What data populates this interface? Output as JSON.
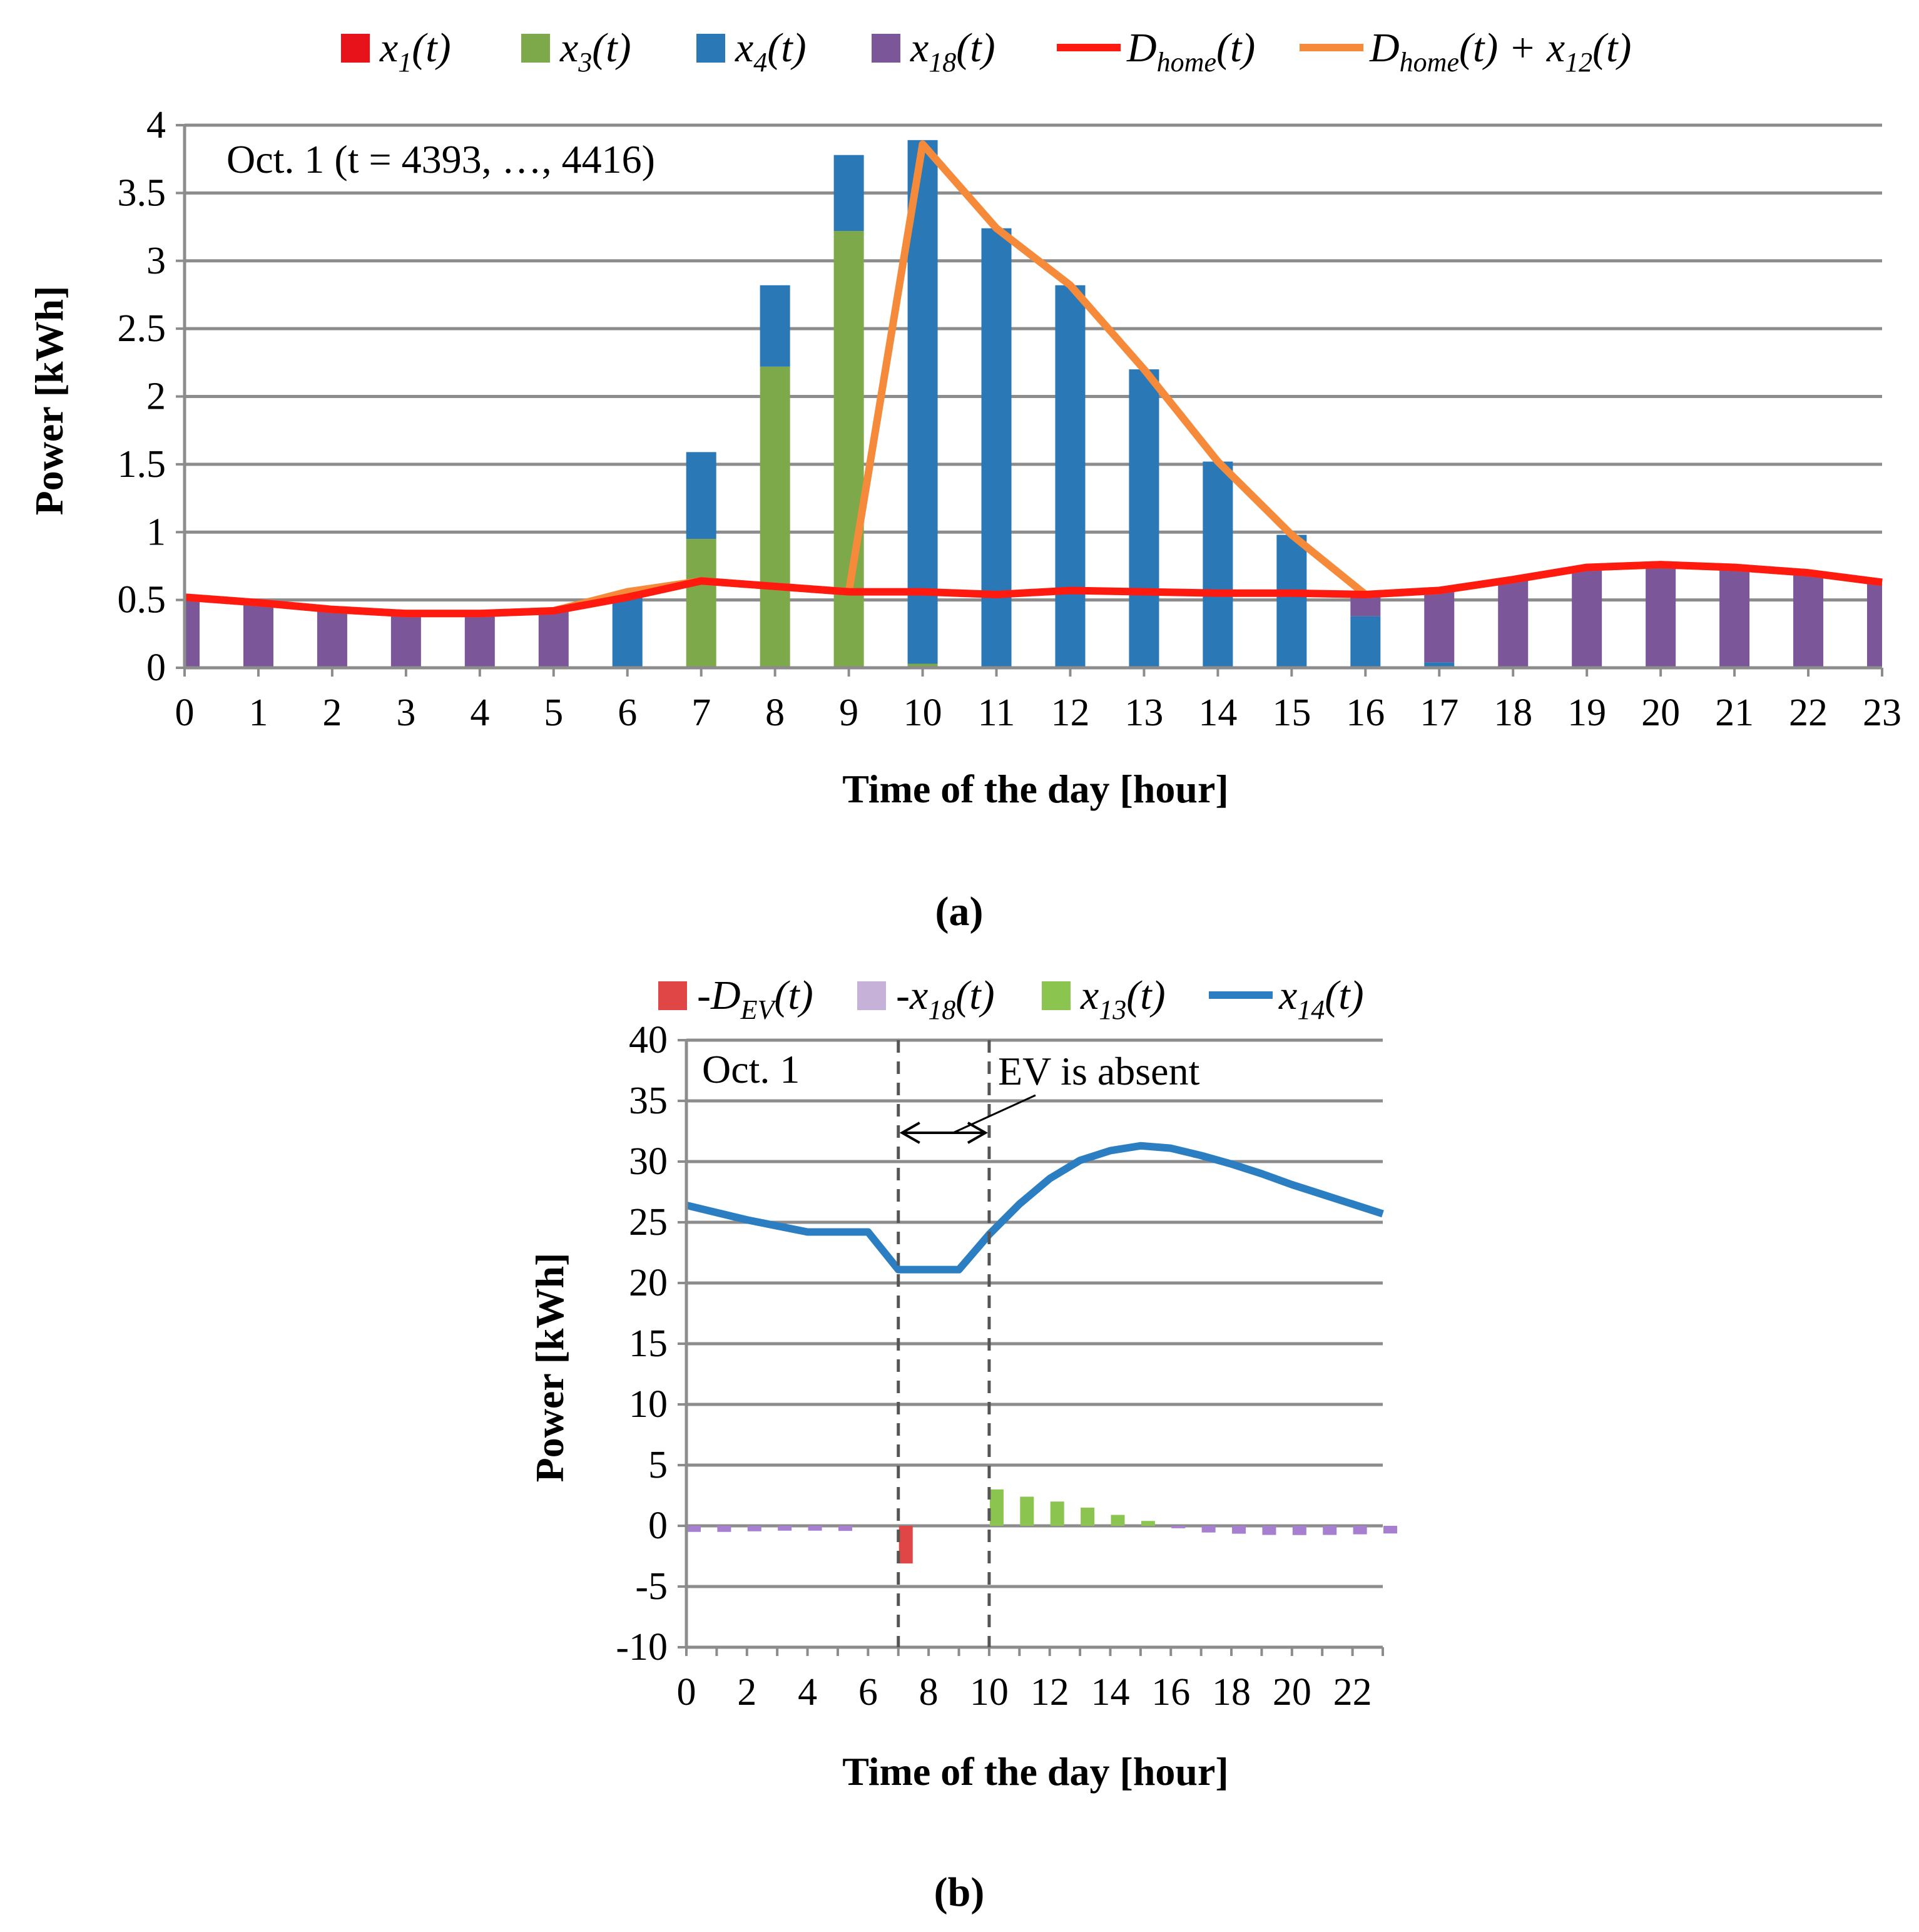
{
  "figure": {
    "panel_a_label": "(a)",
    "panel_b_label": "(b)"
  },
  "colors": {
    "x1": "#e8121b",
    "x3": "#7ea94a",
    "x4": "#2a78b6",
    "x18": "#7b5699",
    "d_home": "#ff1a10",
    "d_home_plus_x12": "#f58a3a",
    "neg_dev": "#e14646",
    "neg_x18": "#c6b1d8",
    "neg_x18_bar": "#a67fd0",
    "x13": "#8bc44f",
    "x14": "#2b7ec1",
    "grid": "#8c8c8c"
  },
  "chart_data": [
    {
      "type": "bar",
      "stacked": true,
      "annotation": "Oct. 1 (t = 4393, …, 4416)",
      "xlabel": "Time of the day [hour]",
      "ylabel": "Power [kWh]",
      "ylim": [
        0,
        4
      ],
      "yticks": [
        0,
        0.5,
        1,
        1.5,
        2,
        2.5,
        3,
        3.5,
        4
      ],
      "categories": [
        "0",
        "1",
        "2",
        "3",
        "4",
        "5",
        "6",
        "7",
        "8",
        "9",
        "10",
        "11",
        "12",
        "13",
        "14",
        "15",
        "16",
        "17",
        "18",
        "19",
        "20",
        "21",
        "22",
        "23"
      ],
      "legend": {
        "position": "top",
        "entries": [
          {
            "key": "x1",
            "base": "x",
            "sub": "1",
            "suffix": "(t)",
            "kind": "box"
          },
          {
            "key": "x3",
            "base": "x",
            "sub": "3",
            "suffix": "(t)",
            "kind": "box"
          },
          {
            "key": "x4",
            "base": "x",
            "sub": "4",
            "suffix": "(t)",
            "kind": "box"
          },
          {
            "key": "x18",
            "base": "x",
            "sub": "18",
            "suffix": "(t)",
            "kind": "box"
          },
          {
            "key": "d_home",
            "base": "D",
            "sub": "home",
            "suffix": "(t)",
            "kind": "line"
          },
          {
            "key": "d_home_plus_x12",
            "base": "D",
            "sub": "home",
            "suffix": "(t) + x",
            "sub2": "12",
            "suffix2": "(t)",
            "kind": "line"
          }
        ]
      },
      "series": [
        {
          "name": "x1(t)",
          "key": "x1",
          "kind": "bar",
          "values": [
            0,
            0,
            0,
            0,
            0,
            0,
            0,
            0,
            0,
            0,
            0,
            0,
            0,
            0,
            0,
            0,
            0,
            0,
            0,
            0,
            0,
            0,
            0,
            0
          ]
        },
        {
          "name": "x3(t)",
          "key": "x3",
          "kind": "bar",
          "values": [
            0,
            0,
            0,
            0,
            0,
            0,
            0,
            0.95,
            2.22,
            3.22,
            0.03,
            0,
            0,
            0,
            0,
            0,
            0,
            0,
            0,
            0,
            0,
            0,
            0,
            0
          ]
        },
        {
          "name": "x4(t)",
          "key": "x4",
          "kind": "bar",
          "values": [
            0,
            0,
            0,
            0,
            0,
            0,
            0.52,
            0.64,
            0.6,
            0.56,
            3.86,
            3.24,
            2.82,
            2.2,
            1.52,
            0.98,
            0.38,
            0.04,
            0,
            0,
            0,
            0,
            0,
            0
          ]
        },
        {
          "name": "x18(t)",
          "key": "x18",
          "kind": "bar",
          "values": [
            0.5,
            0.47,
            0.42,
            0.4,
            0.4,
            0.42,
            0,
            0,
            0,
            0,
            0,
            0,
            0,
            0,
            0,
            0,
            0.16,
            0.54,
            0.65,
            0.74,
            0.76,
            0.74,
            0.7,
            0.63
          ]
        },
        {
          "name": "Dhome(t)",
          "key": "d_home",
          "kind": "line",
          "values": [
            0.52,
            0.48,
            0.43,
            0.4,
            0.4,
            0.42,
            0.52,
            0.64,
            0.6,
            0.56,
            0.56,
            0.54,
            0.57,
            0.56,
            0.55,
            0.55,
            0.54,
            0.57,
            0.65,
            0.74,
            0.76,
            0.74,
            0.7,
            0.63
          ]
        },
        {
          "name": "Dhome(t) + x12(t)",
          "key": "d_home_plus_x12",
          "kind": "line",
          "values": [
            0.52,
            0.48,
            0.43,
            0.4,
            0.4,
            0.42,
            0.56,
            0.64,
            0.6,
            0.56,
            3.86,
            3.24,
            2.82,
            2.2,
            1.52,
            0.98,
            0.54,
            0.57,
            0.65,
            0.74,
            0.76,
            0.74,
            0.7,
            0.63
          ]
        }
      ]
    },
    {
      "type": "bar",
      "annotation": "Oct. 1",
      "annotation2": "EV is absent",
      "xlabel": "Time of the day [hour]",
      "ylabel": "Power [kWh]",
      "ylim": [
        -10,
        40
      ],
      "yticks": [
        -10,
        -5,
        0,
        5,
        10,
        15,
        20,
        25,
        30,
        35,
        40
      ],
      "xticks": [
        0,
        2,
        4,
        6,
        8,
        10,
        12,
        14,
        16,
        18,
        20,
        22
      ],
      "ev_absent_range": [
        7,
        10
      ],
      "x": [
        0,
        1,
        2,
        3,
        4,
        5,
        6,
        7,
        8,
        9,
        10,
        11,
        12,
        13,
        14,
        15,
        16,
        17,
        18,
        19,
        20,
        21,
        22,
        23
      ],
      "legend": {
        "position": "top",
        "entries": [
          {
            "key": "neg_dev",
            "base": "-D",
            "sub": "EV",
            "suffix": "(t)",
            "kind": "box"
          },
          {
            "key": "neg_x18",
            "base": "-x",
            "sub": "18",
            "suffix": "(t)",
            "kind": "box"
          },
          {
            "key": "x13",
            "base": "x",
            "sub": "13",
            "suffix": "(t)",
            "kind": "box"
          },
          {
            "key": "x14",
            "base": "x",
            "sub": "14",
            "suffix": "(t)",
            "kind": "line"
          }
        ]
      },
      "series": [
        {
          "name": "-DEV(t)",
          "key": "neg_dev",
          "kind": "bar",
          "values": [
            0,
            0,
            0,
            0,
            0,
            0,
            0,
            -3.1,
            0,
            0,
            0,
            0,
            0,
            0,
            0,
            0,
            0,
            0,
            0,
            0,
            0,
            0,
            0,
            0
          ]
        },
        {
          "name": "-x18(t)",
          "key": "neg_x18",
          "kind": "bar",
          "values": [
            -0.5,
            -0.5,
            -0.45,
            -0.4,
            -0.4,
            -0.42,
            0,
            0,
            0,
            0,
            0,
            0,
            0,
            0,
            0,
            0,
            -0.2,
            -0.55,
            -0.65,
            -0.75,
            -0.76,
            -0.75,
            -0.7,
            -0.63
          ]
        },
        {
          "name": "x13(t)",
          "key": "x13",
          "kind": "bar",
          "values": [
            0,
            0,
            0,
            0,
            0,
            0,
            0,
            0,
            0,
            0,
            3.0,
            2.4,
            2.0,
            1.5,
            0.9,
            0.4,
            0,
            0,
            0,
            0,
            0,
            0,
            0,
            0
          ]
        },
        {
          "name": "x14(t)",
          "key": "x14",
          "kind": "line",
          "values": [
            26.4,
            25.8,
            25.2,
            24.7,
            24.2,
            24.2,
            24.2,
            21.1,
            21.1,
            21.1,
            24.0,
            26.5,
            28.6,
            30.1,
            30.9,
            31.3,
            31.1,
            30.5,
            29.8,
            29.0,
            28.1,
            27.3,
            26.5,
            25.7
          ]
        }
      ]
    }
  ]
}
